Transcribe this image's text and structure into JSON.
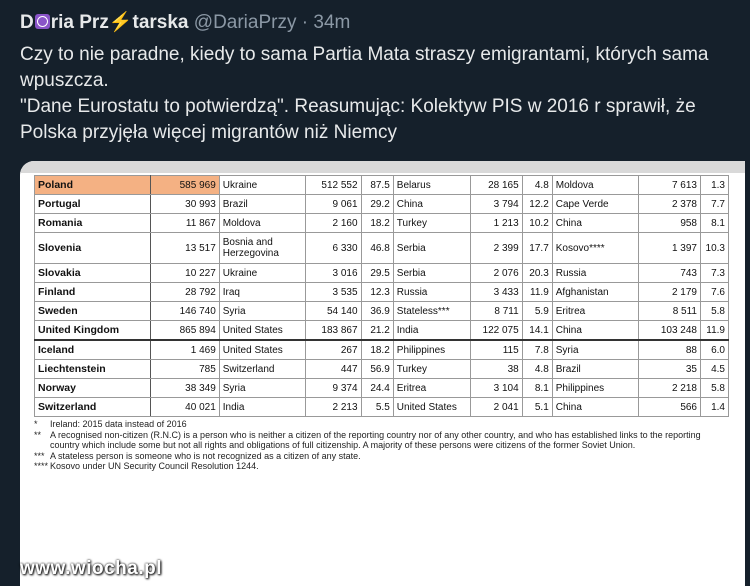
{
  "tweet": {
    "name_parts": [
      "D",
      "ria Prz",
      "tarska"
    ],
    "handle": "@DariaPrzy",
    "separator": "·",
    "time": "34m",
    "lines": [
      "Czy to nie paradne, kiedy to sama Partia Mata straszy emigrantami, których sama wpuszcza.",
      "\"Dane Eurostatu to potwierdzą\".  Reasumując: Kolektyw PIS w 2016 r sprawił, że Polska przyjęła więcej migrantów niż Niemcy"
    ]
  },
  "table": {
    "rows": [
      [
        "Poland",
        "585 969",
        "Ukraine",
        "512 552",
        "87.5",
        "Belarus",
        "28 165",
        "4.8",
        "Moldova",
        "7 613",
        "1.3"
      ],
      [
        "Portugal",
        "30 993",
        "Brazil",
        "9 061",
        "29.2",
        "China",
        "3 794",
        "12.2",
        "Cape Verde",
        "2 378",
        "7.7"
      ],
      [
        "Romania",
        "11 867",
        "Moldova",
        "2 160",
        "18.2",
        "Turkey",
        "1 213",
        "10.2",
        "China",
        "958",
        "8.1"
      ],
      [
        "Slovenia",
        "13 517",
        "Bosnia and Herzegovina",
        "6 330",
        "46.8",
        "Serbia",
        "2 399",
        "17.7",
        "Kosovo****",
        "1 397",
        "10.3"
      ],
      [
        "Slovakia",
        "10 227",
        "Ukraine",
        "3 016",
        "29.5",
        "Serbia",
        "2 076",
        "20.3",
        "Russia",
        "743",
        "7.3"
      ],
      [
        "Finland",
        "28 792",
        "Iraq",
        "3 535",
        "12.3",
        "Russia",
        "3 433",
        "11.9",
        "Afghanistan",
        "2 179",
        "7.6"
      ],
      [
        "Sweden",
        "146 740",
        "Syria",
        "54 140",
        "36.9",
        "Stateless***",
        "8 711",
        "5.9",
        "Eritrea",
        "8 511",
        "5.8"
      ],
      [
        "United Kingdom",
        "865 894",
        "United States",
        "183 867",
        "21.2",
        "India",
        "122 075",
        "14.1",
        "China",
        "103 248",
        "11.9"
      ],
      [
        "Iceland",
        "1 469",
        "United States",
        "267",
        "18.2",
        "Philippines",
        "115",
        "7.8",
        "Syria",
        "88",
        "6.0"
      ],
      [
        "Liechtenstein",
        "785",
        "Switzerland",
        "447",
        "56.9",
        "Turkey",
        "38",
        "4.8",
        "Brazil",
        "35",
        "4.5"
      ],
      [
        "Norway",
        "38 349",
        "Syria",
        "9 374",
        "24.4",
        "Eritrea",
        "3 104",
        "8.1",
        "Philippines",
        "2 218",
        "5.8"
      ],
      [
        "Switzerland",
        "40 021",
        "India",
        "2 213",
        "5.5",
        "United States",
        "2 041",
        "5.1",
        "China",
        "566",
        "1.4"
      ]
    ],
    "notes": [
      {
        "mark": "*",
        "text": "Ireland: 2015 data instead of 2016"
      },
      {
        "mark": "**",
        "text": "A recognised non-citizen (R.N.C) is a person who is neither a citizen of the reporting country nor of any other country, and who has established links to the reporting country which include some but not all rights and obligations of full citizenship. A majority of these persons were citizens of the former Soviet Union."
      },
      {
        "mark": "***",
        "text": "A stateless person is someone who is not recognized as a citizen of any state."
      },
      {
        "mark": "****",
        "text": "Kosovo under UN Security Council Resolution 1244."
      }
    ]
  },
  "watermark": "www.wiocha.pl"
}
